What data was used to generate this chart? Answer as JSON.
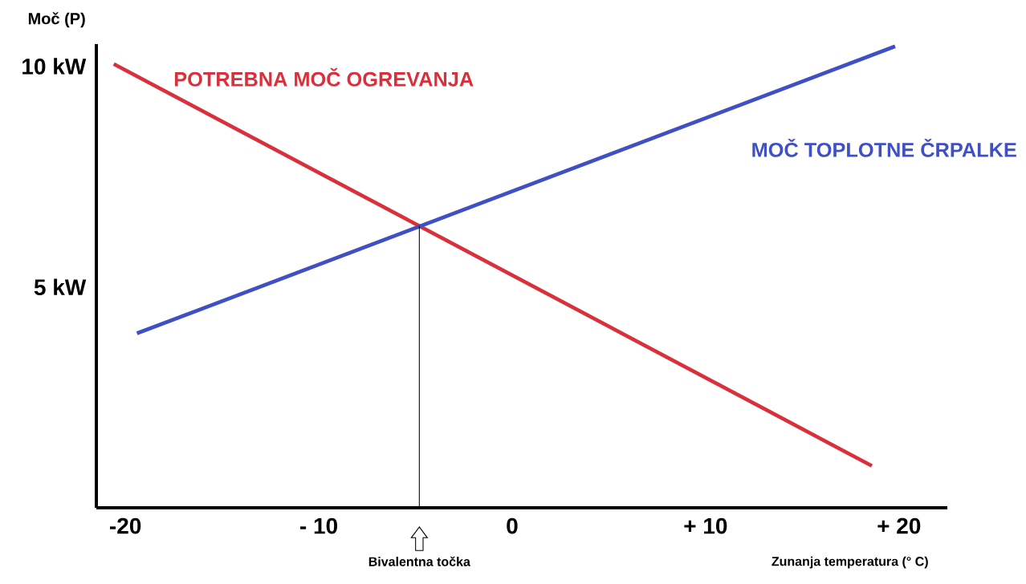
{
  "chart_data": {
    "type": "line",
    "xlabel": "Zunanja temperatura (° C)",
    "ylabel": "Moč (P)",
    "series": [
      {
        "name": "POTREBNA MOČ OGREVANJA",
        "color": "#d9303c",
        "x": [
          -20.6,
          18.6
        ],
        "values": [
          10.05,
          0.95
        ]
      },
      {
        "name": "MOČ TOPLOTNE ČRPALKE",
        "color": "#3f4fc4",
        "x": [
          -19.4,
          19.8
        ],
        "values": [
          3.95,
          10.45
        ]
      }
    ],
    "xlim": [
      -21.5,
      22.5
    ],
    "ylim": [
      0,
      10.5
    ],
    "xticks": [
      {
        "value": -20,
        "label": "-20"
      },
      {
        "value": -10,
        "label": "- 10"
      },
      {
        "value": 0,
        "label": "0"
      },
      {
        "value": 10,
        "label": "+ 10"
      },
      {
        "value": 20,
        "label": "+ 20"
      }
    ],
    "yticks": [
      {
        "value": 5,
        "label": "5 kW"
      },
      {
        "value": 10,
        "label": "10 kW"
      }
    ],
    "ref_lines": [
      {
        "axis": "x",
        "value": -4.8,
        "label": "Bivalentna točka",
        "color": "#000000"
      }
    ],
    "grid": false,
    "legend": false,
    "marker": "none",
    "line_style": "solid"
  }
}
